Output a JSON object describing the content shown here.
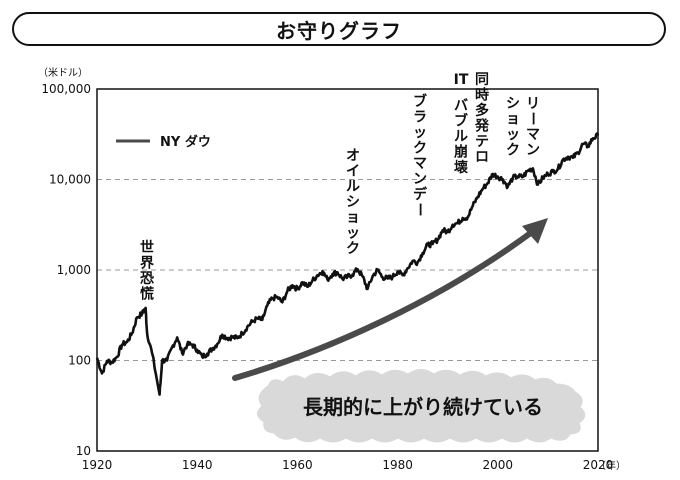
{
  "title": "お守りグラフ",
  "chart_data": {
    "type": "line",
    "title": "お守りグラフ",
    "ylabel": "（米ドル）",
    "xlabel": "（年）",
    "yscale": "log",
    "ylim": [
      10,
      100000
    ],
    "xlim": [
      1920,
      2020
    ],
    "y_ticks": [
      10,
      100,
      1000,
      10000,
      100000
    ],
    "y_tick_labels": [
      "10",
      "100",
      "1,000",
      "10,000",
      "100,000"
    ],
    "x_ticks": [
      1920,
      1940,
      1960,
      1980,
      2000,
      2020
    ],
    "x_tick_labels": [
      "1920",
      "1940",
      "1960",
      "1980",
      "2000",
      "2020"
    ],
    "grid": "horizontal dashed",
    "legend": "top-left",
    "series": [
      {
        "name": "NY ダウ",
        "color": "#111111",
        "x": [
          1920,
          1921,
          1922,
          1923,
          1924,
          1925,
          1926,
          1927,
          1928,
          1929,
          1929.7,
          1930,
          1931,
          1932.5,
          1933,
          1934,
          1935,
          1936,
          1937,
          1938,
          1939,
          1940,
          1941,
          1942,
          1943,
          1944,
          1945,
          1946,
          1947,
          1948,
          1949,
          1950,
          1951,
          1952,
          1953,
          1954,
          1955,
          1956,
          1957,
          1958,
          1959,
          1960,
          1961,
          1962,
          1963,
          1964,
          1965,
          1966,
          1967,
          1968,
          1969,
          1970,
          1971,
          1972,
          1973,
          1974,
          1975,
          1976,
          1977,
          1978,
          1979,
          1980,
          1981,
          1982,
          1983,
          1984,
          1985,
          1986,
          1987,
          1988,
          1989,
          1990,
          1991,
          1992,
          1993,
          1994,
          1995,
          1996,
          1997,
          1998,
          1999,
          2000,
          2001,
          2002,
          2003,
          2004,
          2005,
          2006,
          2007,
          2008,
          2009,
          2010,
          2011,
          2012,
          2013,
          2014,
          2015,
          2016,
          2017,
          2018,
          2019,
          2020
        ],
        "values": [
          107,
          72,
          99,
          96,
          110,
          150,
          160,
          200,
          300,
          330,
          381,
          200,
          120,
          42,
          100,
          100,
          140,
          180,
          120,
          150,
          150,
          131,
          110,
          119,
          135,
          152,
          193,
          177,
          181,
          177,
          200,
          235,
          269,
          291,
          281,
          404,
          488,
          500,
          440,
          584,
          679,
          616,
          731,
          652,
          762,
          874,
          969,
          786,
          905,
          944,
          800,
          839,
          890,
          1020,
          850,
          616,
          852,
          1005,
          831,
          805,
          839,
          964,
          875,
          1047,
          1259,
          1212,
          1547,
          1896,
          1939,
          2169,
          2753,
          2634,
          3169,
          3301,
          3754,
          3834,
          5117,
          6448,
          7908,
          9181,
          11497,
          10787,
          10022,
          8342,
          10454,
          10783,
          10718,
          12463,
          13265,
          8776,
          10428,
          11578,
          12218,
          13104,
          16577,
          17823,
          17425,
          19763,
          24719,
          23327,
          28538,
          30606
        ]
      }
    ],
    "annotations": [
      {
        "text": "世界恐慌",
        "x": 1929
      },
      {
        "text": "オイルショック",
        "x": 1973
      },
      {
        "text": "ブラックマンデー",
        "x": 1987
      },
      {
        "text": "IT バブル崩壊",
        "x": 2000
      },
      {
        "text": "同時多発テロ",
        "x": 2001
      },
      {
        "text": "リーマン ショック",
        "x": 2008
      }
    ],
    "callout": "長期的に上がり続けている"
  }
}
